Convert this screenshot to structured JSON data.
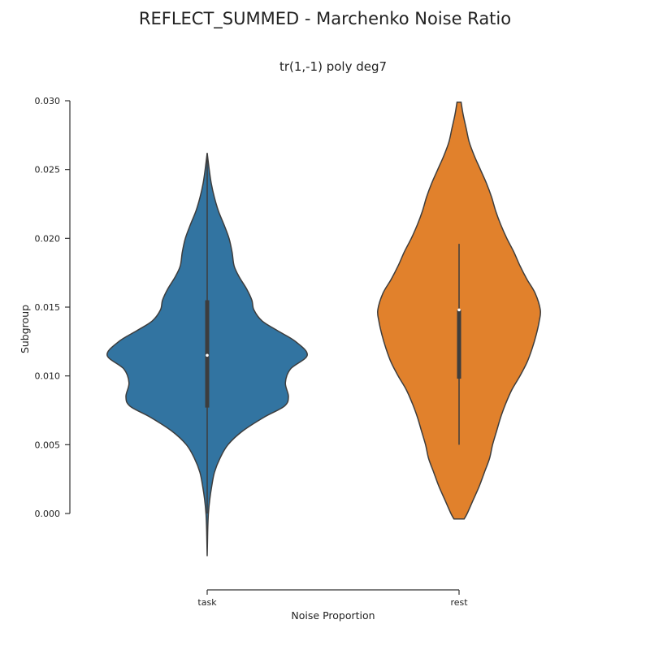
{
  "figure": {
    "suptitle": "REFLECT_SUMMED - Marchenko Noise Ratio",
    "subtitle": "tr(1,-1) poly deg7"
  },
  "chart_data": {
    "type": "violin",
    "xlabel": "Noise Proportion",
    "ylabel": "Subgroup",
    "ylim": [
      -0.0045,
      0.03
    ],
    "yticks": [
      0.0,
      0.005,
      0.01,
      0.015,
      0.02,
      0.025,
      0.03
    ],
    "ytick_labels": [
      "0.000",
      "0.005",
      "0.010",
      "0.015",
      "0.020",
      "0.025",
      "0.030"
    ],
    "categories": [
      "task",
      "rest"
    ],
    "colors": [
      "#3274a1",
      "#e1812c"
    ],
    "violins": [
      {
        "category": "task",
        "median": 0.0115,
        "q1": 0.0077,
        "q3": 0.0155,
        "whisker_low": 0.0,
        "whisker_high": 0.0262,
        "density_profile": [
          [
            -0.0031,
            0.0
          ],
          [
            -0.002,
            0.003
          ],
          [
            -0.001,
            0.006
          ],
          [
            0.0,
            0.012
          ],
          [
            0.001,
            0.025
          ],
          [
            0.002,
            0.045
          ],
          [
            0.003,
            0.072
          ],
          [
            0.004,
            0.125
          ],
          [
            0.005,
            0.205
          ],
          [
            0.006,
            0.35
          ],
          [
            0.007,
            0.56
          ],
          [
            0.0078,
            0.76
          ],
          [
            0.0085,
            0.8
          ],
          [
            0.0095,
            0.77
          ],
          [
            0.0105,
            0.82
          ],
          [
            0.0115,
            0.985
          ],
          [
            0.0125,
            0.87
          ],
          [
            0.0133,
            0.69
          ],
          [
            0.014,
            0.54
          ],
          [
            0.0148,
            0.46
          ],
          [
            0.0155,
            0.44
          ],
          [
            0.0163,
            0.39
          ],
          [
            0.0172,
            0.315
          ],
          [
            0.018,
            0.265
          ],
          [
            0.019,
            0.245
          ],
          [
            0.02,
            0.215
          ],
          [
            0.021,
            0.165
          ],
          [
            0.022,
            0.11
          ],
          [
            0.023,
            0.07
          ],
          [
            0.024,
            0.04
          ],
          [
            0.025,
            0.02
          ],
          [
            0.0262,
            0.0
          ]
        ]
      },
      {
        "category": "rest",
        "median": 0.0148,
        "q1": 0.0098,
        "q3": 0.0148,
        "whisker_low": 0.005,
        "whisker_high": 0.0196,
        "density_profile": [
          [
            -0.0004,
            0.05
          ],
          [
            0.0,
            0.08
          ],
          [
            0.001,
            0.14
          ],
          [
            0.002,
            0.2
          ],
          [
            0.003,
            0.25
          ],
          [
            0.004,
            0.3
          ],
          [
            0.005,
            0.33
          ],
          [
            0.006,
            0.37
          ],
          [
            0.007,
            0.41
          ],
          [
            0.008,
            0.46
          ],
          [
            0.009,
            0.52
          ],
          [
            0.01,
            0.6
          ],
          [
            0.011,
            0.67
          ],
          [
            0.012,
            0.72
          ],
          [
            0.013,
            0.76
          ],
          [
            0.014,
            0.79
          ],
          [
            0.0148,
            0.8
          ],
          [
            0.016,
            0.75
          ],
          [
            0.017,
            0.67
          ],
          [
            0.018,
            0.6
          ],
          [
            0.019,
            0.54
          ],
          [
            0.02,
            0.47
          ],
          [
            0.021,
            0.41
          ],
          [
            0.022,
            0.36
          ],
          [
            0.023,
            0.32
          ],
          [
            0.024,
            0.27
          ],
          [
            0.025,
            0.21
          ],
          [
            0.026,
            0.15
          ],
          [
            0.027,
            0.1
          ],
          [
            0.028,
            0.07
          ],
          [
            0.029,
            0.04
          ],
          [
            0.0299,
            0.02
          ]
        ]
      }
    ]
  }
}
